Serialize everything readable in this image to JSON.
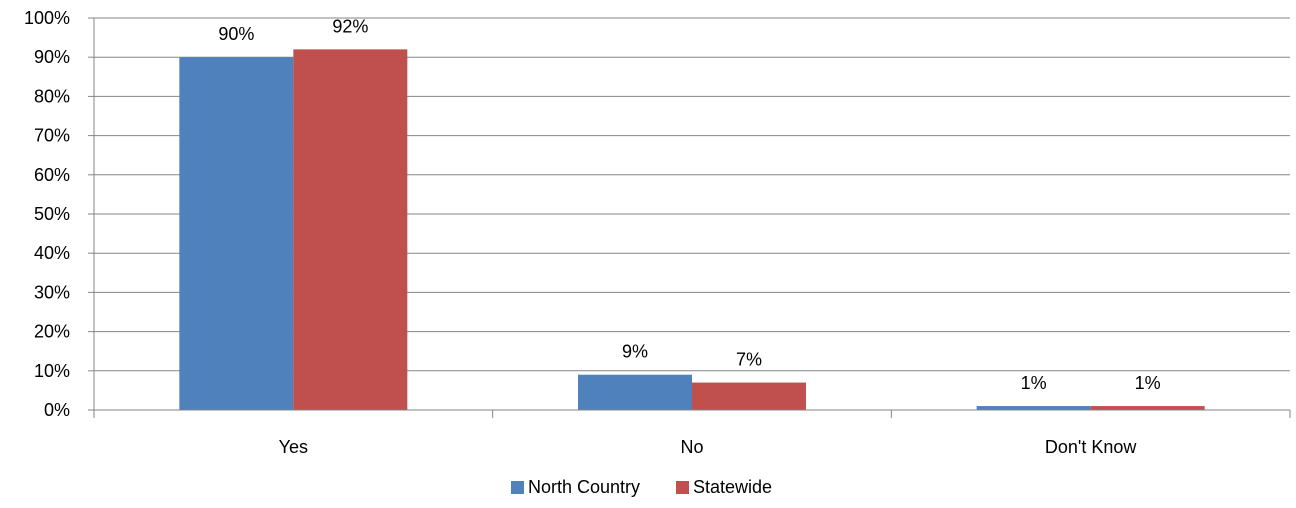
{
  "chart_data": {
    "type": "bar",
    "categories": [
      "Yes",
      "No",
      "Don't Know"
    ],
    "series": [
      {
        "name": "North Country",
        "color": "#4F81BD",
        "values": [
          90,
          9,
          1
        ]
      },
      {
        "name": "Statewide",
        "color": "#C0504D",
        "values": [
          92,
          7,
          1
        ]
      }
    ],
    "data_labels": [
      [
        "90%",
        "9%",
        "1%"
      ],
      [
        "92%",
        "7%",
        "1%"
      ]
    ],
    "ylim": [
      0,
      100
    ],
    "yticks": [
      0,
      10,
      20,
      30,
      40,
      50,
      60,
      70,
      80,
      90,
      100
    ],
    "ytick_labels": [
      "0%",
      "10%",
      "20%",
      "30%",
      "40%",
      "50%",
      "60%",
      "70%",
      "80%",
      "90%",
      "100%"
    ],
    "grid": true,
    "legend": "bottom",
    "title": "",
    "xlabel": "",
    "ylabel": ""
  }
}
